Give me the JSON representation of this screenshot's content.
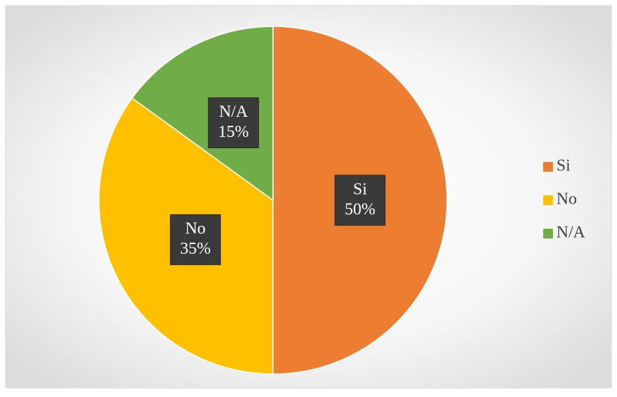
{
  "chart_data": {
    "type": "pie",
    "categories": [
      "Si",
      "No",
      "N/A"
    ],
    "values": [
      50,
      35,
      15
    ],
    "value_labels": [
      "50%",
      "35%",
      "15%"
    ],
    "colors": [
      "#ED7D31",
      "#FFC000",
      "#70AD47"
    ],
    "legend": "right"
  }
}
